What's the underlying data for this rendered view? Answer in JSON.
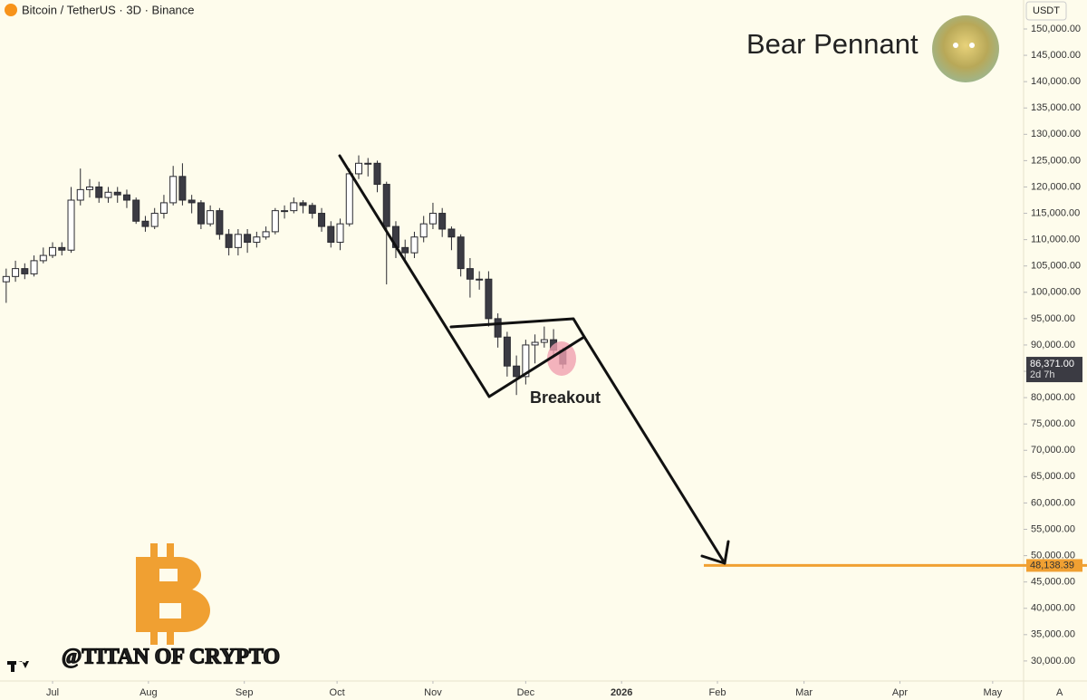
{
  "chart_data": {
    "type": "candlestick",
    "title": "Bitcoin / TetherUS · 3D · Binance",
    "currency": "USDT",
    "pattern": "Bear Pennant",
    "breakout": "Breakout",
    "watermark": "@TITAN OF CRYPTO",
    "scale_button": "A",
    "up_color": "#ffffff",
    "down_color": "#3b3b43",
    "x": [
      -15,
      -12,
      -9,
      -6,
      -3,
      0,
      3,
      6,
      9,
      12,
      15,
      18,
      21,
      24,
      27,
      30,
      33,
      36,
      39,
      42,
      45,
      48,
      51,
      54,
      57,
      60,
      63,
      66,
      69,
      72,
      75,
      78,
      81,
      84,
      87,
      90,
      93,
      96,
      99,
      102,
      105,
      108,
      111,
      114,
      117,
      120,
      123,
      126,
      129,
      132,
      135,
      138,
      141,
      144,
      147,
      150,
      153,
      156,
      159,
      162,
      165
    ],
    "open": [
      102000,
      103000,
      104500,
      103500,
      106000,
      107000,
      108500,
      108000,
      117500,
      119500,
      120000,
      118000,
      119000,
      118500,
      117500,
      113500,
      112500,
      115000,
      117000,
      122000,
      117500,
      117000,
      113000,
      115500,
      111000,
      108500,
      111000,
      109500,
      110500,
      111500,
      115500,
      115500,
      117000,
      116500,
      115000,
      112500,
      109500,
      113000,
      122500,
      124500,
      124500,
      120500,
      112500,
      108500,
      107500,
      110500,
      113000,
      115000,
      112000,
      110500,
      104500,
      102500,
      102500,
      95000,
      91500,
      86000,
      84000,
      90000,
      90500,
      91000,
      89000
    ],
    "high": [
      104500,
      106000,
      105500,
      107000,
      108500,
      109500,
      109500,
      120000,
      123500,
      121500,
      121000,
      120000,
      120000,
      119500,
      118000,
      114500,
      116000,
      118500,
      124000,
      124500,
      118500,
      117500,
      116500,
      116000,
      112000,
      112000,
      112000,
      111500,
      112500,
      116000,
      116500,
      118000,
      117500,
      117000,
      116000,
      113500,
      114000,
      123500,
      126000,
      125500,
      125000,
      121000,
      113500,
      110000,
      111500,
      114500,
      117000,
      116000,
      112500,
      111000,
      106500,
      104000,
      104000,
      96000,
      92500,
      88000,
      91000,
      92000,
      93500,
      93000,
      89500
    ],
    "low": [
      98000,
      102000,
      102500,
      103000,
      105500,
      106500,
      107000,
      107500,
      116500,
      118000,
      117000,
      117000,
      117000,
      116000,
      113000,
      111500,
      112000,
      114000,
      116500,
      116500,
      115000,
      112000,
      112500,
      110000,
      107000,
      107000,
      107500,
      108500,
      110000,
      111000,
      114000,
      115000,
      115000,
      114000,
      111500,
      108500,
      108000,
      112500,
      121500,
      122000,
      119000,
      101500,
      106500,
      105500,
      106500,
      109500,
      112000,
      110500,
      108000,
      103000,
      99000,
      100500,
      93500,
      89500,
      84000,
      80500,
      82500,
      86500,
      89500,
      87500,
      85500
    ],
    "close": [
      103000,
      104500,
      103500,
      106000,
      107000,
      108500,
      108000,
      117500,
      119500,
      120000,
      118000,
      119000,
      118500,
      117500,
      113500,
      112500,
      115000,
      117000,
      122000,
      117500,
      117000,
      113000,
      115500,
      111000,
      108500,
      111000,
      109500,
      110500,
      111500,
      115500,
      115500,
      117000,
      116500,
      115000,
      112500,
      109500,
      113000,
      122500,
      124500,
      124500,
      120500,
      112500,
      108500,
      107500,
      110500,
      113000,
      115000,
      112000,
      110500,
      104500,
      102500,
      102500,
      95000,
      91500,
      86000,
      84000,
      90000,
      90500,
      91000,
      89000,
      86371
    ],
    "last_price_label": "86,371.00",
    "countdown": "2d 7h",
    "target": {
      "value": 48138.39,
      "label": "48,138.39"
    },
    "target_color": "#f0a032",
    "xlim": [
      -17,
      314
    ],
    "xticks": [
      {
        "value": 0,
        "label": "Jul"
      },
      {
        "value": 31,
        "label": "Aug"
      },
      {
        "value": 62,
        "label": "Sep"
      },
      {
        "value": 92,
        "label": "Oct"
      },
      {
        "value": 123,
        "label": "Nov"
      },
      {
        "value": 153,
        "label": "Dec"
      },
      {
        "value": 184,
        "label": "2026"
      },
      {
        "value": 215,
        "label": "Feb"
      },
      {
        "value": 243,
        "label": "Mar"
      },
      {
        "value": 274,
        "label": "Apr"
      },
      {
        "value": 304,
        "label": "May"
      }
    ],
    "ylim": [
      26200,
      155500
    ],
    "yticks": [
      {
        "value": 30000,
        "label": "30,000.00"
      },
      {
        "value": 35000,
        "label": "35,000.00"
      },
      {
        "value": 40000,
        "label": "40,000.00"
      },
      {
        "value": 45000,
        "label": "45,000.00"
      },
      {
        "value": 50000,
        "label": "50,000.00"
      },
      {
        "value": 55000,
        "label": "55,000.00"
      },
      {
        "value": 60000,
        "label": "60,000.00"
      },
      {
        "value": 65000,
        "label": "65,000.00"
      },
      {
        "value": 70000,
        "label": "70,000.00"
      },
      {
        "value": 75000,
        "label": "75,000.00"
      },
      {
        "value": 80000,
        "label": "80,000.00"
      },
      {
        "value": 85000,
        "label": "85,000.00"
      },
      {
        "value": 90000,
        "label": "90,000.00"
      },
      {
        "value": 95000,
        "label": "95,000.00"
      },
      {
        "value": 100000,
        "label": "100,000.00"
      },
      {
        "value": 105000,
        "label": "105,000.00"
      },
      {
        "value": 110000,
        "label": "110,000.00"
      },
      {
        "value": 115000,
        "label": "115,000.00"
      },
      {
        "value": 120000,
        "label": "120,000.00"
      },
      {
        "value": 125000,
        "label": "125,000.00"
      },
      {
        "value": 130000,
        "label": "130,000.00"
      },
      {
        "value": 135000,
        "label": "135,000.00"
      },
      {
        "value": 140000,
        "label": "140,000.00"
      },
      {
        "value": 145000,
        "label": "145,000.00"
      },
      {
        "value": 150000,
        "label": "150,000.00"
      }
    ]
  }
}
